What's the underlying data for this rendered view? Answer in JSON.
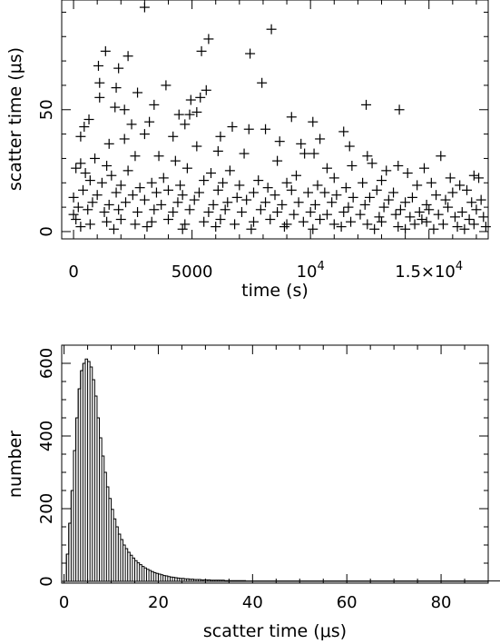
{
  "chart_data": [
    {
      "type": "scatter",
      "xlabel": "time (s)",
      "ylabel": "scatter time (μs)",
      "xlim": [
        -500,
        17500
      ],
      "ylim": [
        -3,
        95
      ],
      "x_ticks": [
        {
          "value": 0,
          "label": "0"
        },
        {
          "value": 5000,
          "label": "5000"
        },
        {
          "value": 10000,
          "label": "10",
          "sup": "4"
        },
        {
          "value": 15000,
          "label": "1.5×10",
          "sup": "4"
        }
      ],
      "y_ticks": [
        {
          "value": 0,
          "label": "0"
        },
        {
          "value": 50,
          "label": "50"
        }
      ],
      "marker": "+",
      "points": [
        [
          3000,
          92
        ],
        [
          8350,
          83
        ],
        [
          5700,
          79
        ],
        [
          5400,
          74
        ],
        [
          7450,
          73
        ],
        [
          1350,
          74
        ],
        [
          2300,
          72
        ],
        [
          1050,
          68
        ],
        [
          1900,
          67
        ],
        [
          1100,
          61
        ],
        [
          7950,
          61
        ],
        [
          3900,
          60
        ],
        [
          1800,
          59
        ],
        [
          5600,
          58
        ],
        [
          2700,
          57
        ],
        [
          1100,
          55
        ],
        [
          5350,
          55
        ],
        [
          4950,
          54
        ],
        [
          3400,
          52
        ],
        [
          12350,
          52
        ],
        [
          1750,
          51
        ],
        [
          2150,
          50
        ],
        [
          13750,
          50
        ],
        [
          5200,
          49
        ],
        [
          4900,
          48
        ],
        [
          4450,
          48
        ],
        [
          9200,
          47
        ],
        [
          650,
          46
        ],
        [
          10100,
          45
        ],
        [
          3200,
          45
        ],
        [
          2450,
          44
        ],
        [
          4700,
          44
        ],
        [
          6700,
          43
        ],
        [
          450,
          43
        ],
        [
          8100,
          42
        ],
        [
          7400,
          42
        ],
        [
          11400,
          41
        ],
        [
          3000,
          40
        ],
        [
          4200,
          39
        ],
        [
          6200,
          39
        ],
        [
          300,
          39
        ],
        [
          2150,
          38
        ],
        [
          10400,
          38
        ],
        [
          8700,
          37
        ],
        [
          9600,
          36
        ],
        [
          11650,
          35
        ],
        [
          1500,
          36
        ],
        [
          5200,
          35
        ],
        [
          9750,
          32
        ],
        [
          10150,
          32
        ],
        [
          12400,
          31
        ],
        [
          6100,
          33
        ],
        [
          7200,
          32
        ],
        [
          12600,
          28
        ],
        [
          13700,
          27
        ],
        [
          14800,
          26
        ],
        [
          15500,
          31
        ],
        [
          11750,
          27
        ],
        [
          10700,
          26
        ],
        [
          8600,
          29
        ],
        [
          900,
          30
        ],
        [
          2600,
          31
        ],
        [
          4300,
          29
        ],
        [
          3600,
          31
        ],
        [
          300,
          28
        ],
        [
          1400,
          27
        ],
        [
          13200,
          25
        ],
        [
          14100,
          24
        ],
        [
          15900,
          22
        ],
        [
          16300,
          19
        ],
        [
          16900,
          23
        ],
        [
          17100,
          22
        ],
        [
          15100,
          20
        ],
        [
          14500,
          19
        ],
        [
          13000,
          21
        ],
        [
          12200,
          20
        ],
        [
          11000,
          22
        ],
        [
          9400,
          23
        ],
        [
          7800,
          21
        ],
        [
          6600,
          25
        ],
        [
          5800,
          24
        ],
        [
          4800,
          26
        ],
        [
          3800,
          22
        ],
        [
          2300,
          25
        ],
        [
          1600,
          23
        ],
        [
          500,
          24
        ],
        [
          100,
          26
        ],
        [
          16600,
          17
        ],
        [
          16000,
          16
        ],
        [
          15300,
          15
        ],
        [
          14300,
          14
        ],
        [
          13500,
          16
        ],
        [
          12800,
          17
        ],
        [
          11500,
          18
        ],
        [
          10300,
          19
        ],
        [
          9000,
          20
        ],
        [
          8200,
          18
        ],
        [
          7000,
          19
        ],
        [
          6300,
          20
        ],
        [
          5500,
          21
        ],
        [
          4500,
          19
        ],
        [
          3300,
          20
        ],
        [
          2800,
          18
        ],
        [
          2000,
          19
        ],
        [
          1200,
          20
        ],
        [
          700,
          21
        ],
        [
          17200,
          13
        ],
        [
          16800,
          12
        ],
        [
          15700,
          13
        ],
        [
          14900,
          11
        ],
        [
          14000,
          12
        ],
        [
          13300,
          13
        ],
        [
          12500,
          14
        ],
        [
          11800,
          14
        ],
        [
          11100,
          15
        ],
        [
          10600,
          16
        ],
        [
          9900,
          16
        ],
        [
          9200,
          17
        ],
        [
          8500,
          15
        ],
        [
          7600,
          16
        ],
        [
          6900,
          14
        ],
        [
          6100,
          17
        ],
        [
          5300,
          16
        ],
        [
          4600,
          15
        ],
        [
          4000,
          17
        ],
        [
          3500,
          16
        ],
        [
          2500,
          15
        ],
        [
          1800,
          16
        ],
        [
          1000,
          15
        ],
        [
          400,
          17
        ],
        [
          0,
          14
        ],
        [
          17000,
          9
        ],
        [
          16400,
          8
        ],
        [
          15800,
          10
        ],
        [
          15000,
          9
        ],
        [
          14600,
          8
        ],
        [
          13800,
          9
        ],
        [
          13100,
          10
        ],
        [
          12300,
          11
        ],
        [
          11600,
          10
        ],
        [
          10900,
          12
        ],
        [
          10200,
          11
        ],
        [
          9500,
          12
        ],
        [
          8800,
          11
        ],
        [
          8100,
          12
        ],
        [
          7300,
          13
        ],
        [
          6500,
          12
        ],
        [
          5900,
          11
        ],
        [
          5100,
          13
        ],
        [
          4400,
          12
        ],
        [
          3700,
          11
        ],
        [
          3000,
          13
        ],
        [
          2200,
          12
        ],
        [
          1500,
          11
        ],
        [
          800,
          12
        ],
        [
          200,
          10
        ],
        [
          17300,
          6
        ],
        [
          16700,
          5
        ],
        [
          16100,
          6
        ],
        [
          15400,
          7
        ],
        [
          14700,
          5
        ],
        [
          14200,
          6
        ],
        [
          13600,
          7
        ],
        [
          12900,
          6
        ],
        [
          12100,
          7
        ],
        [
          11400,
          8
        ],
        [
          10700,
          7
        ],
        [
          10000,
          8
        ],
        [
          9300,
          7
        ],
        [
          8600,
          8
        ],
        [
          7900,
          9
        ],
        [
          7100,
          8
        ],
        [
          6400,
          9
        ],
        [
          5700,
          8
        ],
        [
          4900,
          9
        ],
        [
          4200,
          8
        ],
        [
          3400,
          9
        ],
        [
          2700,
          8
        ],
        [
          1900,
          9
        ],
        [
          1300,
          8
        ],
        [
          600,
          9
        ],
        [
          0,
          7
        ],
        [
          16900,
          3
        ],
        [
          16200,
          2
        ],
        [
          15600,
          3
        ],
        [
          14900,
          4
        ],
        [
          14400,
          3
        ],
        [
          13700,
          2
        ],
        [
          13000,
          4
        ],
        [
          12400,
          3
        ],
        [
          11700,
          4
        ],
        [
          11000,
          3
        ],
        [
          10400,
          5
        ],
        [
          9700,
          4
        ],
        [
          9000,
          3
        ],
        [
          8300,
          5
        ],
        [
          7600,
          4
        ],
        [
          6800,
          3
        ],
        [
          6200,
          5
        ],
        [
          5500,
          4
        ],
        [
          4700,
          3
        ],
        [
          4000,
          5
        ],
        [
          3300,
          4
        ],
        [
          2600,
          3
        ],
        [
          2000,
          5
        ],
        [
          1400,
          4
        ],
        [
          700,
          3
        ],
        [
          100,
          5
        ],
        [
          17400,
          2
        ],
        [
          16500,
          1
        ],
        [
          15200,
          1
        ],
        [
          14000,
          1
        ],
        [
          12700,
          1
        ],
        [
          11300,
          2
        ],
        [
          10100,
          1
        ],
        [
          8900,
          2
        ],
        [
          7500,
          1
        ],
        [
          6000,
          2
        ],
        [
          4600,
          1
        ],
        [
          3100,
          2
        ],
        [
          1700,
          1
        ],
        [
          300,
          2
        ]
      ]
    },
    {
      "type": "bar",
      "subtype": "histogram",
      "xlabel": "scatter time (μs)",
      "ylabel": "number",
      "xlim": [
        -0.5,
        90
      ],
      "ylim": [
        -5,
        650
      ],
      "bin_width": 0.5,
      "x_ticks": [
        {
          "value": 0,
          "label": "0"
        },
        {
          "value": 20,
          "label": "20"
        },
        {
          "value": 40,
          "label": "40"
        },
        {
          "value": 60,
          "label": "60"
        },
        {
          "value": 80,
          "label": "80"
        }
      ],
      "y_ticks": [
        {
          "value": 0,
          "label": "0"
        },
        {
          "value": 200,
          "label": "200"
        },
        {
          "value": 400,
          "label": "400"
        },
        {
          "value": 600,
          "label": "600"
        }
      ],
      "bin_start": 0.5,
      "counts": [
        75,
        160,
        250,
        360,
        450,
        530,
        580,
        600,
        612,
        605,
        590,
        555,
        510,
        450,
        395,
        345,
        300,
        260,
        228,
        198,
        172,
        150,
        130,
        115,
        100,
        90,
        80,
        72,
        64,
        57,
        51,
        46,
        41,
        37,
        33,
        30,
        27,
        24,
        22,
        20,
        18,
        16,
        15,
        13,
        12,
        11,
        10,
        9,
        8,
        8,
        7,
        7,
        6,
        6,
        5,
        5,
        5,
        4,
        4,
        4,
        4,
        3,
        3,
        3,
        3,
        3,
        3,
        2,
        2,
        2,
        2,
        2,
        2,
        2,
        2,
        2,
        1,
        1,
        1,
        1,
        1,
        1,
        1,
        1,
        1,
        1,
        1,
        1,
        1,
        1,
        1,
        1,
        1,
        1,
        1,
        1,
        1,
        1,
        1,
        1,
        1,
        1,
        1,
        1,
        1,
        1,
        1,
        1,
        1,
        1,
        1,
        1,
        1,
        1,
        1,
        1,
        1,
        1,
        1,
        1,
        1,
        1,
        1,
        1,
        1,
        1,
        1,
        1,
        1,
        1,
        1,
        1,
        1,
        1,
        1,
        1,
        1,
        1,
        1,
        1,
        1,
        1,
        1,
        1,
        1,
        1,
        1,
        1,
        1,
        1,
        1,
        1,
        1,
        1,
        1,
        1,
        1,
        1,
        1,
        1,
        1,
        1,
        1,
        1,
        1,
        1,
        1,
        1,
        1,
        1,
        1,
        1,
        1,
        1,
        1,
        1,
        1,
        1,
        1,
        1,
        1,
        1,
        1,
        1,
        1,
        1,
        1,
        1
      ]
    }
  ]
}
